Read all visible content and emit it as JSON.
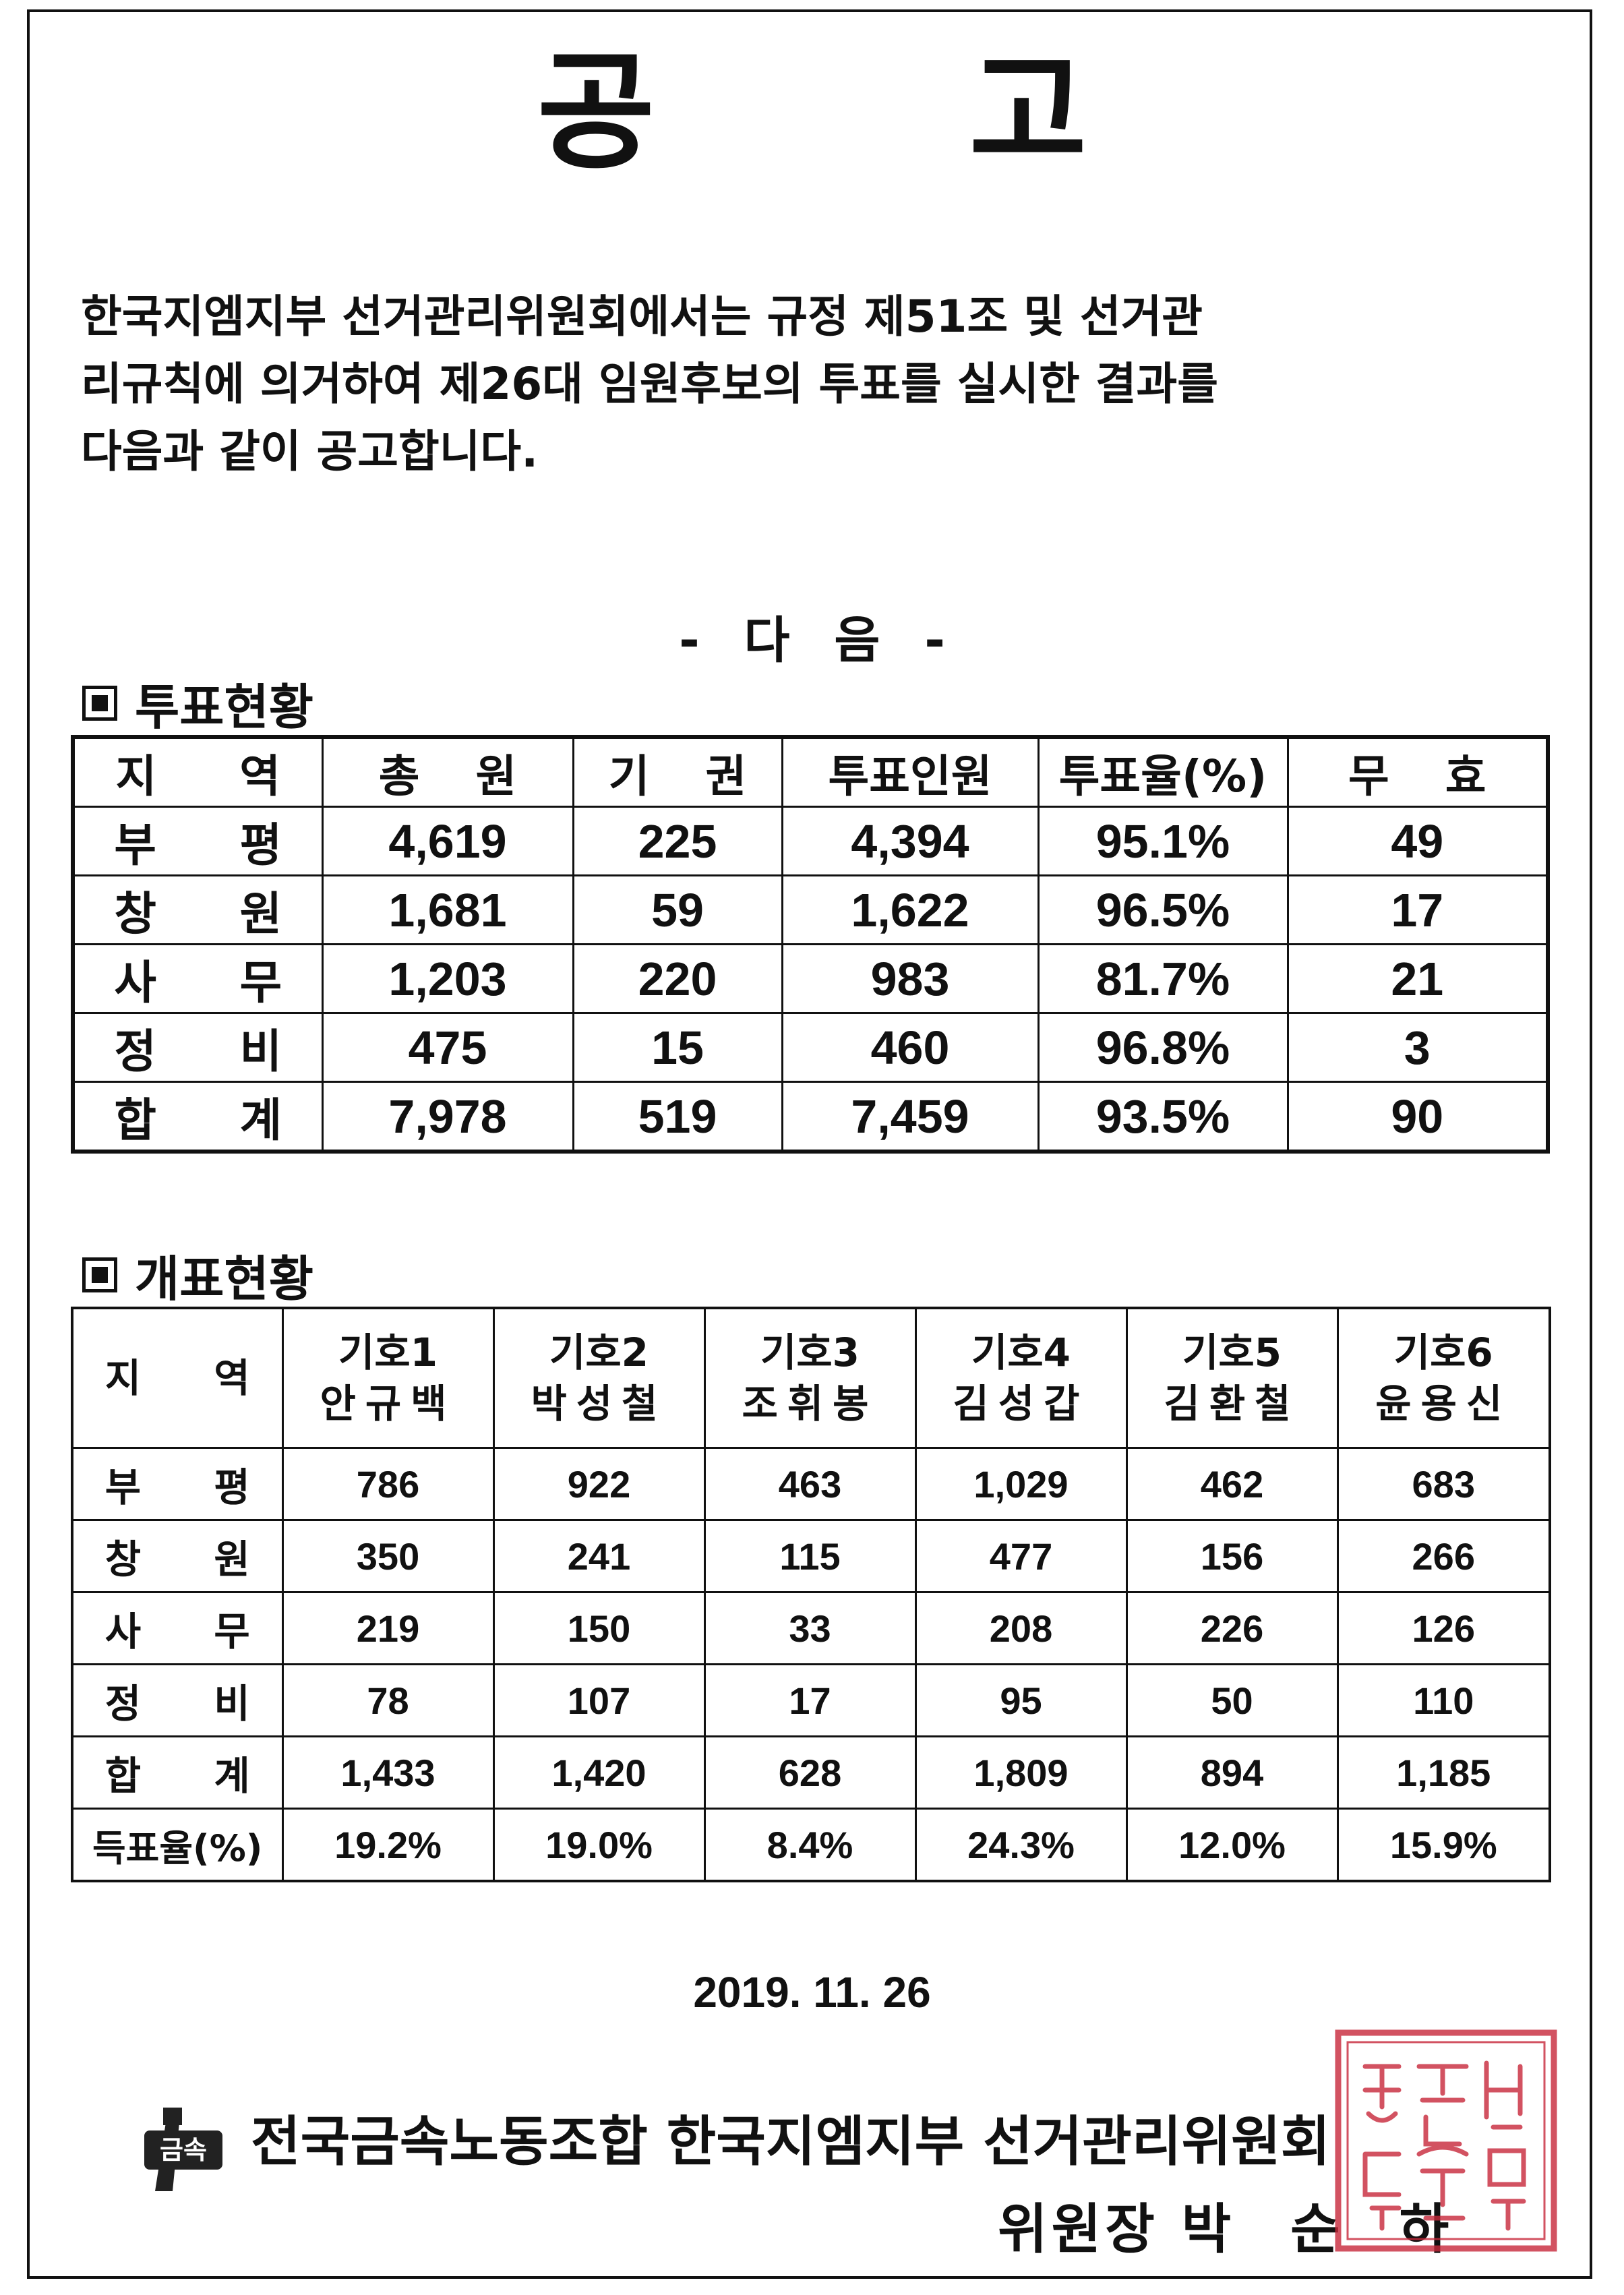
{
  "title": "공 고",
  "intro": "한국지엠지부 선거관리위원회에서는 규정 제51조 및 선거관\n리규칙에 의거하여 제26대 임원후보의 투표를 실시한 결과를\n다음과 같이 공고합니다.",
  "divider": "- 다  음 -",
  "voting": {
    "heading": "투표현황",
    "headers": [
      "지 역",
      "총 원",
      "기 권",
      "투표인원",
      "투표율(%)",
      "무 효"
    ],
    "rows": [
      {
        "region": "부 평",
        "total": "4,619",
        "abstain": "225",
        "voters": "4,394",
        "rate": "95.1%",
        "invalid": "49"
      },
      {
        "region": "창 원",
        "total": "1,681",
        "abstain": "59",
        "voters": "1,622",
        "rate": "96.5%",
        "invalid": "17"
      },
      {
        "region": "사 무",
        "total": "1,203",
        "abstain": "220",
        "voters": "983",
        "rate": "81.7%",
        "invalid": "21"
      },
      {
        "region": "정 비",
        "total": "475",
        "abstain": "15",
        "voters": "460",
        "rate": "96.8%",
        "invalid": "3"
      },
      {
        "region": "합 계",
        "total": "7,978",
        "abstain": "519",
        "voters": "7,459",
        "rate": "93.5%",
        "invalid": "90"
      }
    ]
  },
  "counting": {
    "heading": "개표현황",
    "region_header": "지 역",
    "candidates": [
      {
        "number": "기호1",
        "name": "안규백"
      },
      {
        "number": "기호2",
        "name": "박성철"
      },
      {
        "number": "기호3",
        "name": "조휘봉"
      },
      {
        "number": "기호4",
        "name": "김성갑"
      },
      {
        "number": "기호5",
        "name": "김환철"
      },
      {
        "number": "기호6",
        "name": "윤용신"
      }
    ],
    "rows": [
      {
        "region": "부 평",
        "values": [
          "786",
          "922",
          "463",
          "1,029",
          "462",
          "683"
        ]
      },
      {
        "region": "창 원",
        "values": [
          "350",
          "241",
          "115",
          "477",
          "156",
          "266"
        ]
      },
      {
        "region": "사 무",
        "values": [
          "219",
          "150",
          "33",
          "208",
          "226",
          "126"
        ]
      },
      {
        "region": "정 비",
        "values": [
          "78",
          "107",
          "17",
          "95",
          "50",
          "110"
        ]
      },
      {
        "region": "합 계",
        "values": [
          "1,433",
          "1,420",
          "628",
          "1,809",
          "894",
          "1,185"
        ]
      },
      {
        "region": "득표율(%)",
        "values": [
          "19.2%",
          "19.0%",
          "8.4%",
          "24.3%",
          "12.0%",
          "15.9%"
        ]
      }
    ]
  },
  "date": "2019. 11. 26",
  "footer": {
    "logo_text": "금속",
    "organization": "전국금속노동조합 한국지엠지부 선거관리위원회",
    "chair_title": "위원장",
    "chair_name": "박 순 하"
  },
  "colors": {
    "text": "#111111",
    "seal": "#c8283a"
  }
}
